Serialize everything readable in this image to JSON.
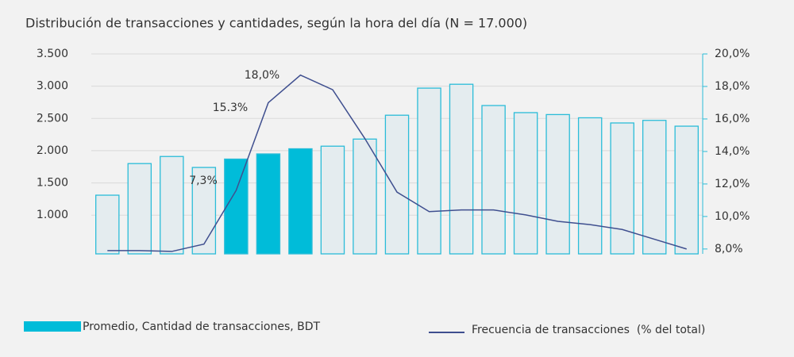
{
  "chart_data": {
    "type": "bar",
    "title": "Distribución de transacciones y cantidades, según la hora del día (N = 17.000)",
    "categories": [
      null,
      null,
      null,
      null,
      null,
      null,
      null,
      null,
      null,
      null,
      null,
      null,
      null,
      null,
      null,
      null,
      null,
      null,
      null
    ],
    "series": [
      {
        "name": "Promedio, Cantidad de transacciones, BDT",
        "color": "#00bcd9",
        "edge_color": "#2bbcd8",
        "colors": [
          "#e4ecef",
          "#e4ecef",
          "#e4ecef",
          "#e4ecef",
          "#00bcd9",
          "#00bcd9",
          "#00bcd9",
          "#e4ecef",
          "#e4ecef",
          "#e4ecef",
          "#e4ecef",
          "#e4ecef",
          "#e4ecef",
          "#e4ecef",
          "#e4ecef",
          "#e4ecef",
          "#e4ecef",
          "#e4ecef",
          "#e4ecef"
        ],
        "values": [
          1310,
          1800,
          1910,
          1740,
          1870,
          1950,
          2030,
          2070,
          2180,
          2550,
          2970,
          3030,
          2700,
          2590,
          2560,
          2510,
          2430,
          2470,
          2380
        ]
      },
      {
        "name": "Frecuencia de transacciones  (% del total)",
        "color": "#3f4f8f",
        "axis": "y2",
        "type": "line",
        "values": [
          7.9,
          7.9,
          7.85,
          8.3,
          11.6,
          17.0,
          18.7,
          17.8,
          14.8,
          11.5,
          10.3,
          10.4,
          10.4,
          10.1,
          9.7,
          9.5,
          9.2,
          8.6,
          8.0
        ]
      }
    ],
    "annotations": [
      "7,3%",
      "15.3%",
      "18,0%"
    ],
    "ylim": [
      400,
      3500
    ],
    "yticks": [
      {
        "value": 1000,
        "label": "1.000"
      },
      {
        "value": 1500,
        "label": "1.500"
      },
      {
        "value": 2000,
        "label": "2.000"
      },
      {
        "value": 2500,
        "label": "2.500"
      },
      {
        "value": 3000,
        "label": "3.000"
      },
      {
        "value": 3500,
        "label": "3.500"
      }
    ],
    "y2lim": [
      7.7,
      20
    ],
    "y2ticks": [
      {
        "value": 8,
        "label": "8,0%"
      },
      {
        "value": 10,
        "label": "10,0%"
      },
      {
        "value": 12,
        "label": "12,0%"
      },
      {
        "value": 14,
        "label": "14,0%"
      },
      {
        "value": 16,
        "label": "16,0%"
      },
      {
        "value": 18,
        "label": "18,0%"
      },
      {
        "value": 20,
        "label": "20,0%"
      }
    ],
    "grid": true
  }
}
